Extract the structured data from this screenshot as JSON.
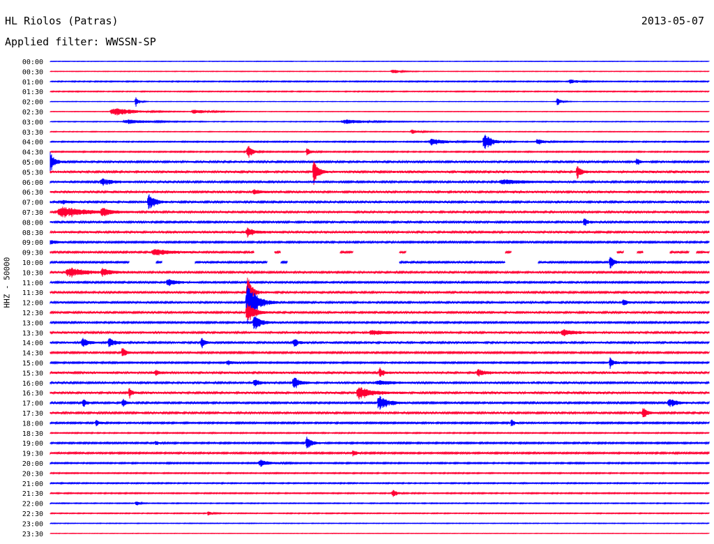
{
  "header": {
    "station": "HL Riolos (Patras)",
    "date": "2013-05-07",
    "filter": "Applied filter: WWSSN-SP"
  },
  "chart_data": {
    "type": "line",
    "title": "HL Riolos (Patras)",
    "date": "2013-05-07",
    "filter": "WWSSN-SP",
    "ylabel": "HHZ - 50000",
    "colors": {
      "even_row": "#0000ff",
      "odd_row": "#ff0033"
    },
    "row_labels": [
      "00:00",
      "00:30",
      "01:00",
      "01:30",
      "02:00",
      "02:30",
      "03:00",
      "03:30",
      "04:00",
      "04:30",
      "05:00",
      "05:30",
      "06:00",
      "06:30",
      "07:00",
      "07:30",
      "08:00",
      "08:30",
      "09:00",
      "09:30",
      "10:00",
      "10:30",
      "11:00",
      "11:30",
      "12:00",
      "12:30",
      "13:00",
      "13:30",
      "14:00",
      "14:30",
      "15:00",
      "15:30",
      "16:00",
      "16:30",
      "17:00",
      "17:30",
      "18:00",
      "18:30",
      "19:00",
      "19:30",
      "20:00",
      "20:30",
      "21:00",
      "21:30",
      "22:00",
      "22:30",
      "23:00",
      "23:30"
    ],
    "row_noise": [
      0.2,
      0.25,
      0.45,
      0.4,
      0.2,
      0.25,
      0.3,
      0.3,
      0.5,
      0.5,
      0.9,
      1.0,
      0.9,
      1.0,
      0.9,
      1.0,
      0.9,
      1.0,
      0.8,
      0.9,
      0.8,
      0.9,
      0.8,
      0.9,
      0.9,
      0.9,
      0.8,
      1.0,
      0.9,
      0.8,
      0.7,
      1.0,
      0.9,
      1.0,
      0.8,
      0.9,
      0.7,
      0.5,
      0.7,
      0.7,
      0.6,
      0.5,
      0.5,
      0.5,
      0.4,
      0.4,
      0.3,
      0.2
    ],
    "events": [
      {
        "row": 1,
        "t": 0.52,
        "amp": 3,
        "w": 0.01
      },
      {
        "row": 2,
        "t": 0.79,
        "amp": 3,
        "w": 0.01
      },
      {
        "row": 4,
        "t": 0.13,
        "amp": 6,
        "w": 0.005
      },
      {
        "row": 4,
        "t": 0.77,
        "amp": 5,
        "w": 0.006
      },
      {
        "row": 5,
        "t": 0.1,
        "amp": 5,
        "w": 0.03
      },
      {
        "row": 5,
        "t": 0.22,
        "amp": 3,
        "w": 0.02
      },
      {
        "row": 6,
        "t": 0.12,
        "amp": 3,
        "w": 0.03
      },
      {
        "row": 6,
        "t": 0.45,
        "amp": 3,
        "w": 0.03
      },
      {
        "row": 7,
        "t": 0.55,
        "amp": 3,
        "w": 0.01
      },
      {
        "row": 8,
        "t": 0.66,
        "amp": 12,
        "w": 0.01
      },
      {
        "row": 8,
        "t": 0.58,
        "amp": 4,
        "w": 0.02
      },
      {
        "row": 8,
        "t": 0.74,
        "amp": 4,
        "w": 0.01
      },
      {
        "row": 9,
        "t": 0.3,
        "amp": 10,
        "w": 0.006
      },
      {
        "row": 9,
        "t": 0.39,
        "amp": 5,
        "w": 0.006
      },
      {
        "row": 10,
        "t": 0.0,
        "amp": 14,
        "w": 0.006
      },
      {
        "row": 10,
        "t": 0.89,
        "amp": 5,
        "w": 0.004
      },
      {
        "row": 11,
        "t": 0.4,
        "amp": 18,
        "w": 0.006
      },
      {
        "row": 11,
        "t": 0.8,
        "amp": 8,
        "w": 0.006
      },
      {
        "row": 12,
        "t": 0.08,
        "amp": 4,
        "w": 0.015
      },
      {
        "row": 12,
        "t": 0.69,
        "amp": 3,
        "w": 0.03
      },
      {
        "row": 13,
        "t": 0.31,
        "amp": 3,
        "w": 0.01
      },
      {
        "row": 14,
        "t": 0.15,
        "amp": 12,
        "w": 0.008
      },
      {
        "row": 14,
        "t": 0.02,
        "amp": 2,
        "w": 0.015
      },
      {
        "row": 15,
        "t": 0.02,
        "amp": 7,
        "w": 0.03
      },
      {
        "row": 15,
        "t": 0.08,
        "amp": 5,
        "w": 0.01
      },
      {
        "row": 16,
        "t": 0.81,
        "amp": 6,
        "w": 0.005
      },
      {
        "row": 17,
        "t": 0.3,
        "amp": 6,
        "w": 0.01
      },
      {
        "row": 18,
        "t": 0.0,
        "amp": 3,
        "w": 0.01
      },
      {
        "row": 19,
        "t": 0.16,
        "amp": 4,
        "w": 0.02
      },
      {
        "row": 20,
        "t": 0.85,
        "amp": 8,
        "w": 0.006
      },
      {
        "row": 21,
        "t": 0.03,
        "amp": 7,
        "w": 0.02
      },
      {
        "row": 21,
        "t": 0.08,
        "amp": 5,
        "w": 0.012
      },
      {
        "row": 22,
        "t": 0.18,
        "amp": 5,
        "w": 0.012
      },
      {
        "row": 23,
        "t": 0.3,
        "amp": 24,
        "w": 0.006
      },
      {
        "row": 24,
        "t": 0.3,
        "amp": 30,
        "w": 0.012
      },
      {
        "row": 24,
        "t": 0.87,
        "amp": 5,
        "w": 0.005
      },
      {
        "row": 25,
        "t": 0.3,
        "amp": 14,
        "w": 0.01
      },
      {
        "row": 26,
        "t": 0.31,
        "amp": 10,
        "w": 0.01
      },
      {
        "row": 27,
        "t": 0.49,
        "amp": 3,
        "w": 0.02
      },
      {
        "row": 27,
        "t": 0.78,
        "amp": 4,
        "w": 0.015
      },
      {
        "row": 28,
        "t": 0.05,
        "amp": 6,
        "w": 0.008
      },
      {
        "row": 28,
        "t": 0.09,
        "amp": 6,
        "w": 0.008
      },
      {
        "row": 28,
        "t": 0.23,
        "amp": 7,
        "w": 0.005
      },
      {
        "row": 28,
        "t": 0.37,
        "amp": 6,
        "w": 0.006
      },
      {
        "row": 29,
        "t": 0.11,
        "amp": 7,
        "w": 0.006
      },
      {
        "row": 30,
        "t": 0.27,
        "amp": 3,
        "w": 0.01
      },
      {
        "row": 30,
        "t": 0.85,
        "amp": 7,
        "w": 0.006
      },
      {
        "row": 31,
        "t": 0.16,
        "amp": 4,
        "w": 0.005
      },
      {
        "row": 31,
        "t": 0.5,
        "amp": 7,
        "w": 0.005
      },
      {
        "row": 31,
        "t": 0.65,
        "amp": 5,
        "w": 0.008
      },
      {
        "row": 32,
        "t": 0.31,
        "amp": 6,
        "w": 0.006
      },
      {
        "row": 32,
        "t": 0.37,
        "amp": 9,
        "w": 0.008
      },
      {
        "row": 32,
        "t": 0.5,
        "amp": 3,
        "w": 0.02
      },
      {
        "row": 33,
        "t": 0.12,
        "amp": 7,
        "w": 0.004
      },
      {
        "row": 33,
        "t": 0.47,
        "amp": 8,
        "w": 0.018
      },
      {
        "row": 34,
        "t": 0.05,
        "amp": 5,
        "w": 0.005
      },
      {
        "row": 34,
        "t": 0.11,
        "amp": 6,
        "w": 0.005
      },
      {
        "row": 34,
        "t": 0.5,
        "amp": 10,
        "w": 0.012
      },
      {
        "row": 34,
        "t": 0.94,
        "amp": 6,
        "w": 0.01
      },
      {
        "row": 35,
        "t": 0.9,
        "amp": 7,
        "w": 0.006
      },
      {
        "row": 36,
        "t": 0.07,
        "amp": 4,
        "w": 0.006
      },
      {
        "row": 36,
        "t": 0.7,
        "amp": 5,
        "w": 0.004
      },
      {
        "row": 38,
        "t": 0.16,
        "amp": 3,
        "w": 0.004
      },
      {
        "row": 38,
        "t": 0.39,
        "amp": 9,
        "w": 0.007
      },
      {
        "row": 39,
        "t": 0.46,
        "amp": 4,
        "w": 0.005
      },
      {
        "row": 40,
        "t": 0.32,
        "amp": 5,
        "w": 0.012
      },
      {
        "row": 43,
        "t": 0.52,
        "amp": 5,
        "w": 0.006
      },
      {
        "row": 44,
        "t": 0.13,
        "amp": 4,
        "w": 0.004
      },
      {
        "row": 45,
        "t": 0.24,
        "amp": 3,
        "w": 0.005
      }
    ],
    "gaps": [
      {
        "row": 19,
        "from": 0.31,
        "to": 0.98,
        "segments": [
          [
            0.34,
            0.35
          ],
          [
            0.44,
            0.46
          ],
          [
            0.53,
            0.54
          ],
          [
            0.69,
            0.7
          ],
          [
            0.86,
            0.87
          ],
          [
            0.89,
            0.9
          ],
          [
            0.94,
            0.97
          ]
        ]
      },
      {
        "row": 20,
        "from": 0.12,
        "to": 0.53,
        "segments": [
          [
            0.16,
            0.17
          ],
          [
            0.22,
            0.33
          ],
          [
            0.35,
            0.36
          ]
        ]
      },
      {
        "row": 20,
        "from": 0.69,
        "to": 0.74,
        "segments": []
      }
    ]
  }
}
